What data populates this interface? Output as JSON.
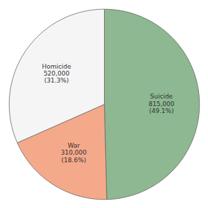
{
  "chart_data": {
    "type": "pie",
    "categories": [
      "Suicide\n815,000\n(49.1%)",
      "War\n310,000\n(18.6%)",
      "Homicide\n520,000\n(31.3%)"
    ],
    "values": [
      49.1,
      18.6,
      31.3
    ],
    "colors": [
      "#8db891",
      "#f4a98a",
      "#f5f5f5"
    ]
  }
}
